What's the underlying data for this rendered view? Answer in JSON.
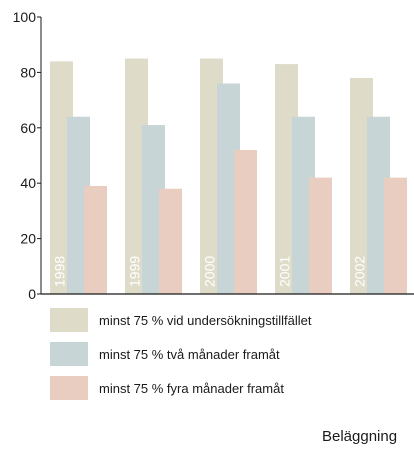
{
  "chart_data": {
    "type": "bar",
    "categories": [
      "1998",
      "1999",
      "2000",
      "2001",
      "2002"
    ],
    "series": [
      {
        "name": "minst 75 % vid undersökningstillfället",
        "color": "#dedcc9",
        "values": [
          84,
          85,
          85,
          83,
          78
        ]
      },
      {
        "name": "minst 75 % två månader framåt",
        "color": "#c8d5d6",
        "values": [
          64,
          61,
          76,
          64,
          64
        ]
      },
      {
        "name": "minst 75 % fyra månader framåt",
        "color": "#e8cdc0",
        "values": [
          39,
          38,
          52,
          42,
          42
        ]
      }
    ],
    "ylim": [
      0,
      100
    ],
    "yticks": [
      0,
      20,
      40,
      60,
      80,
      100
    ],
    "legend_position": "bottom"
  },
  "footer": {
    "text": "Beläggning"
  }
}
